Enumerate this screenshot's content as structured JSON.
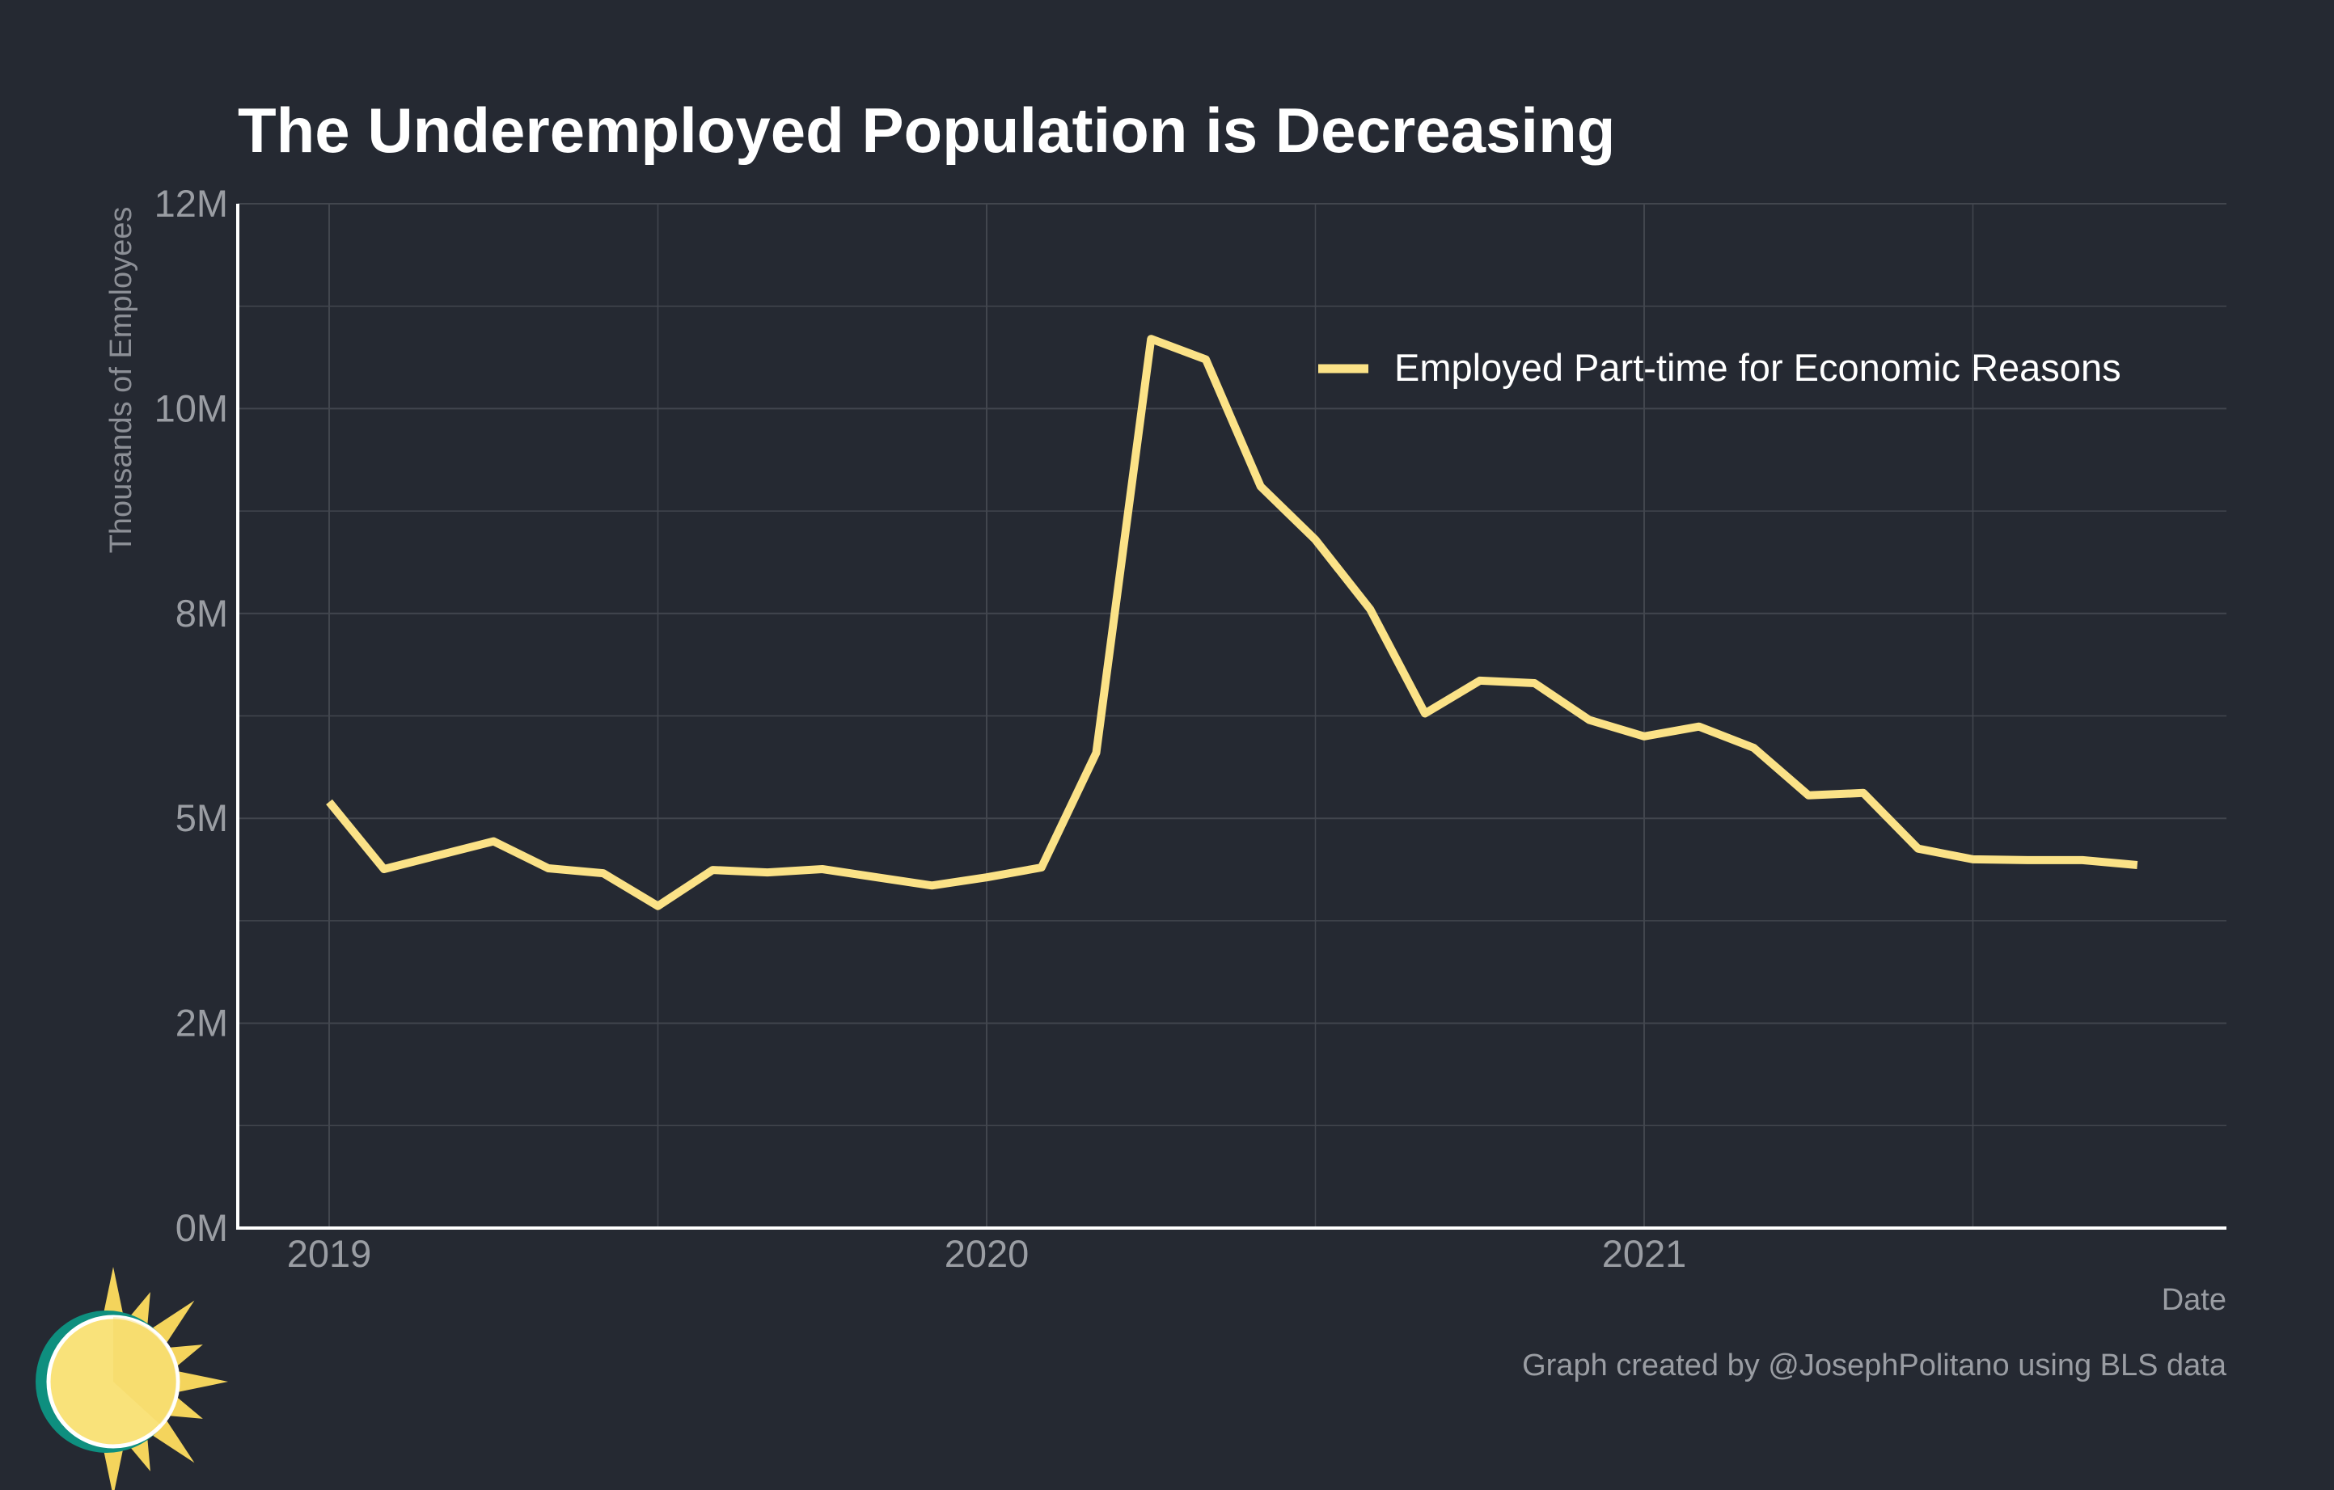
{
  "colors": {
    "background": "#252932",
    "line": "#fbe287",
    "grid": "#42464e",
    "axis": "#ffffff",
    "tick_text": "#9a9da3",
    "logo_ring": "#0e8f7f",
    "logo_sun": "#f9e27a",
    "logo_rays": "#f4d45c"
  },
  "logo": {
    "icon": "sun-logo-icon"
  },
  "chart_data": {
    "type": "line",
    "title": "The Underemployed Population is Decreasing",
    "ylabel": "Thousands of Employees",
    "xlabel": "Date",
    "caption": "Graph created by @JosephPolitano using BLS data",
    "legend_position": "top-right",
    "grid": true,
    "ylim": [
      0,
      12500
    ],
    "y_ticks": [
      {
        "value": 0,
        "label": "0M"
      },
      {
        "value": 2500,
        "label": "2M"
      },
      {
        "value": 5000,
        "label": "5M"
      },
      {
        "value": 7500,
        "label": "8M"
      },
      {
        "value": 10000,
        "label": "10M"
      },
      {
        "value": 12500,
        "label": "12M"
      }
    ],
    "x_ticks": [
      {
        "value": "2019-01",
        "label": "2019"
      },
      {
        "value": "2020-01",
        "label": "2020"
      },
      {
        "value": "2021-01",
        "label": "2021"
      }
    ],
    "series": [
      {
        "name": "Employed Part-time for Economic Reasons",
        "x": [
          "2019-01",
          "2019-02",
          "2019-03",
          "2019-04",
          "2019-05",
          "2019-06",
          "2019-07",
          "2019-08",
          "2019-09",
          "2019-10",
          "2019-11",
          "2019-12",
          "2020-01",
          "2020-02",
          "2020-03",
          "2020-04",
          "2020-05",
          "2020-06",
          "2020-07",
          "2020-08",
          "2020-09",
          "2020-10",
          "2020-11",
          "2020-12",
          "2021-01",
          "2021-02",
          "2021-03",
          "2021-04",
          "2021-05",
          "2021-06",
          "2021-07",
          "2021-08",
          "2021-09",
          "2021-10"
        ],
        "values": [
          5200,
          4380,
          4550,
          4720,
          4390,
          4330,
          3930,
          4370,
          4340,
          4380,
          4280,
          4180,
          4280,
          4400,
          5800,
          10850,
          10600,
          9050,
          8400,
          7550,
          6280,
          6680,
          6650,
          6200,
          6000,
          6120,
          5860,
          5280,
          5310,
          4630,
          4500,
          4490,
          4490,
          4430
        ]
      }
    ]
  }
}
